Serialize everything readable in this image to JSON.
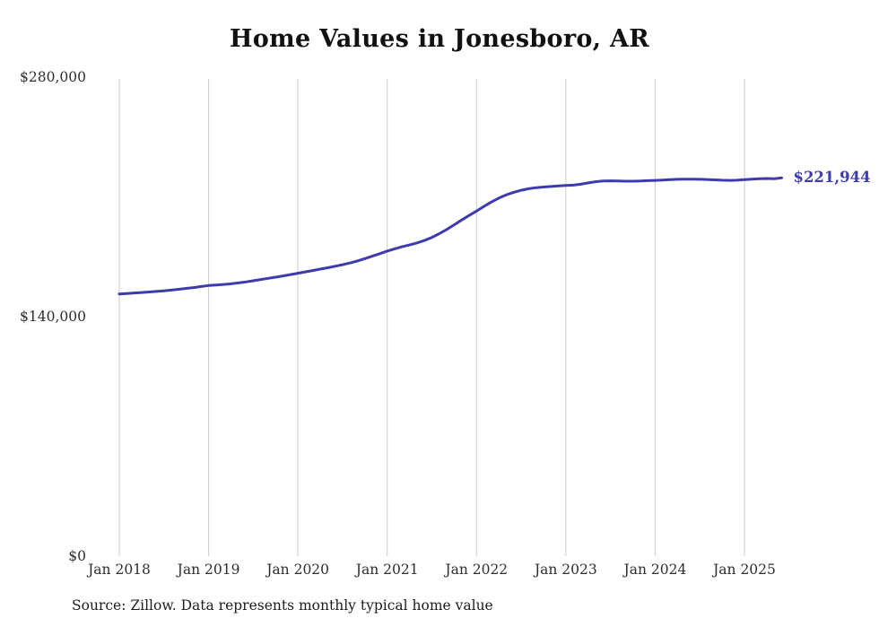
{
  "page": {
    "title": "Home Values in Jonesboro, AR",
    "source_note": "Source: Zillow. Data represents monthly typical home value"
  },
  "colors": {
    "background": "#ffffff",
    "text": "#2e2e2e",
    "accent": "#3d3bae"
  },
  "chart_data": {
    "type": "line",
    "title": "Home Values in Jonesboro, AR",
    "series_name": "Typical home value",
    "xlabel": "",
    "ylabel": "",
    "ylim": [
      0,
      280000
    ],
    "y_ticks": [
      0,
      140000,
      280000
    ],
    "y_tick_labels": [
      "$0",
      "$140,000",
      "$280,000"
    ],
    "x_tick_labels": [
      "Jan 2018",
      "Jan 2019",
      "Jan 2020",
      "Jan 2021",
      "Jan 2022",
      "Jan 2023",
      "Jan 2024",
      "Jan 2025"
    ],
    "x_tick_month_indices": [
      0,
      12,
      24,
      36,
      48,
      60,
      72,
      84
    ],
    "grid": "vertical-only",
    "legend": "none",
    "line_color": "#3d3bae",
    "gridline_color": "#cccccc",
    "current_value": 221944,
    "current_value_label": "$221,944",
    "months": [
      "2018-01",
      "2018-02",
      "2018-03",
      "2018-04",
      "2018-05",
      "2018-06",
      "2018-07",
      "2018-08",
      "2018-09",
      "2018-10",
      "2018-11",
      "2018-12",
      "2019-01",
      "2019-02",
      "2019-03",
      "2019-04",
      "2019-05",
      "2019-06",
      "2019-07",
      "2019-08",
      "2019-09",
      "2019-10",
      "2019-11",
      "2019-12",
      "2020-01",
      "2020-02",
      "2020-03",
      "2020-04",
      "2020-05",
      "2020-06",
      "2020-07",
      "2020-08",
      "2020-09",
      "2020-10",
      "2020-11",
      "2020-12",
      "2021-01",
      "2021-02",
      "2021-03",
      "2021-04",
      "2021-05",
      "2021-06",
      "2021-07",
      "2021-08",
      "2021-09",
      "2021-10",
      "2021-11",
      "2021-12",
      "2022-01",
      "2022-02",
      "2022-03",
      "2022-04",
      "2022-05",
      "2022-06",
      "2022-07",
      "2022-08",
      "2022-09",
      "2022-10",
      "2022-11",
      "2022-12",
      "2023-01",
      "2023-02",
      "2023-03",
      "2023-04",
      "2023-05",
      "2023-06",
      "2023-07",
      "2023-08",
      "2023-09",
      "2023-10",
      "2023-11",
      "2023-12",
      "2024-01",
      "2024-02",
      "2024-03",
      "2024-04",
      "2024-05",
      "2024-06",
      "2024-07",
      "2024-08",
      "2024-09",
      "2024-10",
      "2024-11",
      "2024-12",
      "2025-01",
      "2025-02",
      "2025-03",
      "2025-04",
      "2025-05",
      "2025-06"
    ],
    "values": [
      153800,
      154100,
      154400,
      154700,
      155000,
      155300,
      155700,
      156100,
      156600,
      157100,
      157600,
      158200,
      158800,
      159100,
      159400,
      159800,
      160300,
      160900,
      161600,
      162300,
      163000,
      163700,
      164400,
      165200,
      166000,
      166800,
      167600,
      168400,
      169200,
      170100,
      171000,
      172000,
      173200,
      174600,
      176000,
      177500,
      179000,
      180300,
      181500,
      182600,
      183800,
      185200,
      187000,
      189200,
      191700,
      194400,
      197200,
      199900,
      202500,
      205200,
      207800,
      210100,
      212000,
      213500,
      214700,
      215600,
      216200,
      216600,
      216900,
      217200,
      217500,
      217700,
      218200,
      219000,
      219700,
      220100,
      220200,
      220100,
      220000,
      220000,
      220100,
      220300,
      220500,
      220700,
      220900,
      221100,
      221200,
      221200,
      221100,
      221000,
      220800,
      220600,
      220500,
      220600,
      220900,
      221200,
      221500,
      221600,
      221400,
      221944
    ]
  }
}
